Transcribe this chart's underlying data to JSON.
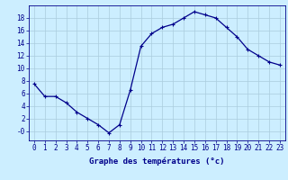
{
  "hours": [
    0,
    1,
    2,
    3,
    4,
    5,
    6,
    7,
    8,
    9,
    10,
    11,
    12,
    13,
    14,
    15,
    16,
    17,
    18,
    19,
    20,
    21,
    22,
    23
  ],
  "temps": [
    7.5,
    5.5,
    5.5,
    4.5,
    3.0,
    2.0,
    1.0,
    -0.3,
    1.0,
    6.5,
    13.5,
    15.5,
    16.5,
    17.0,
    18.0,
    19.0,
    18.5,
    18.0,
    16.5,
    15.0,
    13.0,
    12.0,
    11.0,
    10.5
  ],
  "xlabel": "Graphe des températures (°c)",
  "line_color": "#00008B",
  "marker_color": "#00008B",
  "bg_color": "#cceeff",
  "grid_color": "#aaccdd",
  "ylabel_ticks": [
    0,
    2,
    4,
    6,
    8,
    10,
    12,
    14,
    16,
    18
  ],
  "ylabel_labels": [
    "-0",
    "2",
    "4",
    "6",
    "8",
    "10",
    "12",
    "14",
    "16",
    "18"
  ],
  "ylim": [
    -1.5,
    20.0
  ],
  "xlim": [
    -0.5,
    23.5
  ],
  "tick_fontsize": 5.5,
  "xlabel_fontsize": 6.5
}
